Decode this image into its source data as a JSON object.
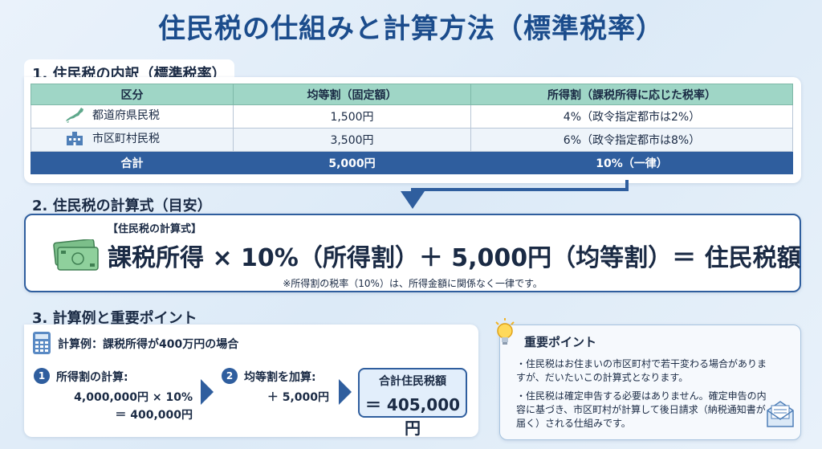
{
  "title": "住民税の仕組みと計算方法（標準税率）",
  "section1": {
    "heading": "1. 住民税の内訳（標準税率）",
    "columns": [
      "区分",
      "均等割（固定額）",
      "所得割（課税所得に応じた税率）"
    ],
    "rows": [
      {
        "category": "都道府県民税",
        "icon": "japan-map-icon",
        "fixed": "1,500円",
        "rate": "4%（政令指定都市は2%）"
      },
      {
        "category": "市区町村民税",
        "icon": "city-hall-icon",
        "fixed": "3,500円",
        "rate": "6%（政令指定都市は8%）"
      },
      {
        "category": "合計",
        "fixed": "5,000円",
        "rate": "10%（一律）"
      }
    ]
  },
  "section2": {
    "heading": "2. 住民税の計算式（目安）",
    "label": "【住民税の計算式】",
    "formula": "課税所得 × 10%（所得割）＋ 5,000円（均等割）＝ 住民税額",
    "note": "※所得割の税率（10%）は、所得金額に関係なく一律です。"
  },
  "section3": {
    "heading": "3. 計算例と重要ポイント",
    "example_title": "計算例：課税所得が400万円の場合",
    "step1": {
      "num": "1",
      "title": "所得割の計算:",
      "line1": "4,000,000円 × 10%",
      "line2": "＝ 400,000円"
    },
    "step2": {
      "num": "2",
      "title": "均等割を加算:",
      "line1": "＋ 5,000円"
    },
    "total": {
      "label": "合計住民税額",
      "value": "＝ 405,000円"
    }
  },
  "important": {
    "title": "重要ポイント",
    "bullets": [
      "・住民税はお住まいの市区町村で若干変わる場合がありますが、だいたいこの計算式となります。",
      "・住民税は確定申告する必要はありません。確定申告の内容に基づき、市区町村が計算して後日請求（納税通知書が届く）される仕組みです。"
    ]
  },
  "colors": {
    "primary": "#2f5e9e",
    "title": "#1b4c8c",
    "header": "#9fd6c6"
  }
}
